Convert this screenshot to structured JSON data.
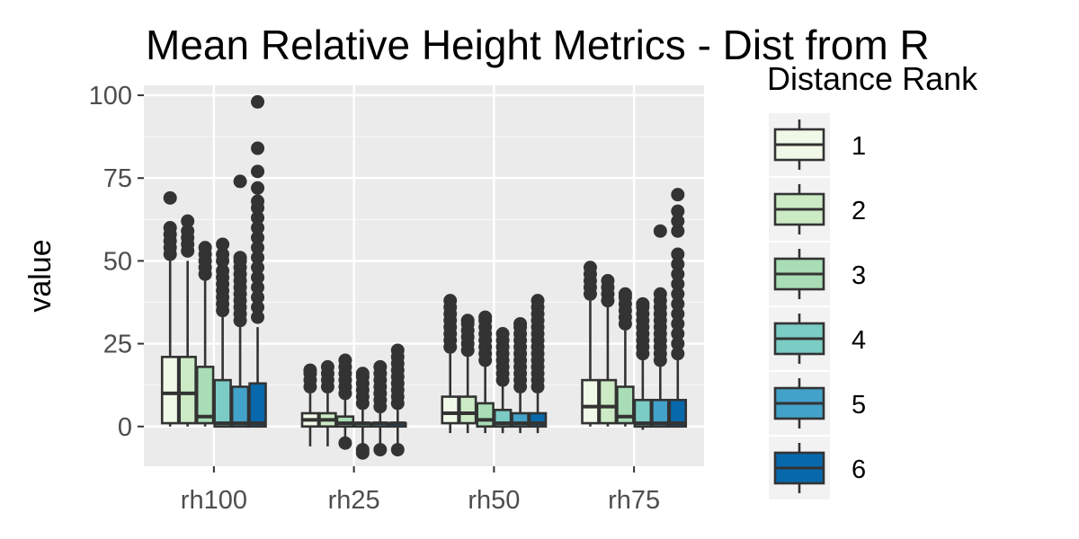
{
  "chart_data": {
    "type": "boxplot",
    "title": "Mean Relative Height Metrics - Dist from R",
    "xlabel": "",
    "ylabel": "value",
    "ylim": [
      -12,
      103
    ],
    "yticks": [
      0,
      25,
      50,
      75,
      100
    ],
    "categories": [
      "rh100",
      "rh25",
      "rh50",
      "rh75"
    ],
    "legend": {
      "title": "Distance Rank",
      "placement": "right"
    },
    "grid": true,
    "series": [
      {
        "name": "1",
        "color": "#F0F9E8",
        "boxes": [
          {
            "q1": 1,
            "median": 10,
            "q3": 21,
            "lower": 0,
            "upper": 50,
            "outliers": [
              52,
              54,
              56,
              58,
              60,
              69
            ]
          },
          {
            "q1": 0,
            "median": 2,
            "q3": 4,
            "lower": -6,
            "upper": 10,
            "outliers": [
              12,
              14,
              16,
              17
            ]
          },
          {
            "q1": 1,
            "median": 4,
            "q3": 9,
            "lower": -2,
            "upper": 22,
            "outliers": [
              24,
              26,
              28,
              30,
              32,
              34,
              36,
              38
            ]
          },
          {
            "q1": 1,
            "median": 6,
            "q3": 14,
            "lower": 0,
            "upper": 38,
            "outliers": [
              40,
              42,
              44,
              46,
              48
            ]
          }
        ]
      },
      {
        "name": "2",
        "color": "#CCEBC5",
        "boxes": [
          {
            "q1": 1,
            "median": 10,
            "q3": 21,
            "lower": 0,
            "upper": 50,
            "outliers": [
              53,
              55,
              57,
              59,
              62
            ]
          },
          {
            "q1": 0,
            "median": 2,
            "q3": 4,
            "lower": -6,
            "upper": 10,
            "outliers": [
              12,
              14,
              16,
              18
            ]
          },
          {
            "q1": 1,
            "median": 4,
            "q3": 9,
            "lower": -2,
            "upper": 21,
            "outliers": [
              23,
              25,
              27,
              29,
              31,
              32
            ]
          },
          {
            "q1": 1,
            "median": 6,
            "q3": 14,
            "lower": 0,
            "upper": 36,
            "outliers": [
              38,
              40,
              42,
              44
            ]
          }
        ]
      },
      {
        "name": "3",
        "color": "#A8DDB5",
        "boxes": [
          {
            "q1": 1,
            "median": 3,
            "q3": 18,
            "lower": 0,
            "upper": 44,
            "outliers": [
              46,
              48,
              50,
              52,
              54
            ]
          },
          {
            "q1": 0,
            "median": 1,
            "q3": 3,
            "lower": -5,
            "upper": 8,
            "outliers": [
              10,
              12,
              14,
              16,
              18,
              20,
              -5
            ]
          },
          {
            "q1": 0,
            "median": 2,
            "q3": 7,
            "lower": -2,
            "upper": 18,
            "outliers": [
              20,
              22,
              24,
              26,
              28,
              30,
              32,
              33
            ]
          },
          {
            "q1": 1,
            "median": 3,
            "q3": 12,
            "lower": 0,
            "upper": 29,
            "outliers": [
              31,
              33,
              35,
              37,
              39,
              40
            ]
          }
        ]
      },
      {
        "name": "4",
        "color": "#7BCCC4",
        "boxes": [
          {
            "q1": 0,
            "median": 1,
            "q3": 14,
            "lower": 0,
            "upper": 33,
            "outliers": [
              35,
              37,
              39,
              41,
              43,
              45,
              47,
              50,
              52,
              55
            ]
          },
          {
            "q1": 0,
            "median": 1,
            "q3": 1,
            "lower": -6,
            "upper": 5,
            "outliers": [
              7,
              9,
              11,
              13,
              15,
              16,
              -7,
              -8
            ]
          },
          {
            "q1": 0,
            "median": 1,
            "q3": 5,
            "lower": -2,
            "upper": 12,
            "outliers": [
              14,
              16,
              18,
              20,
              22,
              24,
              26,
              28
            ]
          },
          {
            "q1": 0,
            "median": 1,
            "q3": 8,
            "lower": -1,
            "upper": 20,
            "outliers": [
              22,
              24,
              26,
              28,
              30,
              32,
              34,
              36,
              37
            ]
          }
        ]
      },
      {
        "name": "5",
        "color": "#43A2CA",
        "boxes": [
          {
            "q1": 0,
            "median": 1,
            "q3": 12,
            "lower": 0,
            "upper": 30,
            "outliers": [
              32,
              34,
              36,
              38,
              40,
              42,
              44,
              46,
              48,
              50,
              51,
              74
            ]
          },
          {
            "q1": 0,
            "median": 1,
            "q3": 1,
            "lower": -6,
            "upper": 4,
            "outliers": [
              6,
              8,
              10,
              12,
              14,
              16,
              18,
              -7
            ]
          },
          {
            "q1": 0,
            "median": 1,
            "q3": 4,
            "lower": -2,
            "upper": 10,
            "outliers": [
              12,
              14,
              16,
              18,
              20,
              22,
              24,
              26,
              28,
              30,
              31
            ]
          },
          {
            "q1": 0,
            "median": 1,
            "q3": 8,
            "lower": 0,
            "upper": 18,
            "outliers": [
              20,
              22,
              24,
              26,
              28,
              30,
              32,
              34,
              36,
              38,
              40,
              59
            ]
          }
        ]
      },
      {
        "name": "6",
        "color": "#0868AC",
        "boxes": [
          {
            "q1": 0,
            "median": 1,
            "q3": 13,
            "lower": 0,
            "upper": 30,
            "outliers": [
              33,
              36,
              39,
              42,
              45,
              48,
              51,
              54,
              57,
              60,
              63,
              66,
              68,
              72,
              77,
              84,
              98
            ]
          },
          {
            "q1": 0,
            "median": 1,
            "q3": 1,
            "lower": -6,
            "upper": 5,
            "outliers": [
              7,
              9,
              11,
              13,
              15,
              17,
              19,
              21,
              23,
              -7
            ]
          },
          {
            "q1": 0,
            "median": 1,
            "q3": 4,
            "lower": -2,
            "upper": 10,
            "outliers": [
              12,
              14,
              16,
              18,
              20,
              22,
              24,
              26,
              28,
              30,
              32,
              34,
              36,
              38
            ]
          },
          {
            "q1": 0,
            "median": 1,
            "q3": 8,
            "lower": 0,
            "upper": 20,
            "outliers": [
              22,
              25,
              28,
              31,
              34,
              37,
              40,
              43,
              46,
              49,
              52,
              59,
              62,
              65,
              70
            ]
          }
        ]
      }
    ]
  }
}
